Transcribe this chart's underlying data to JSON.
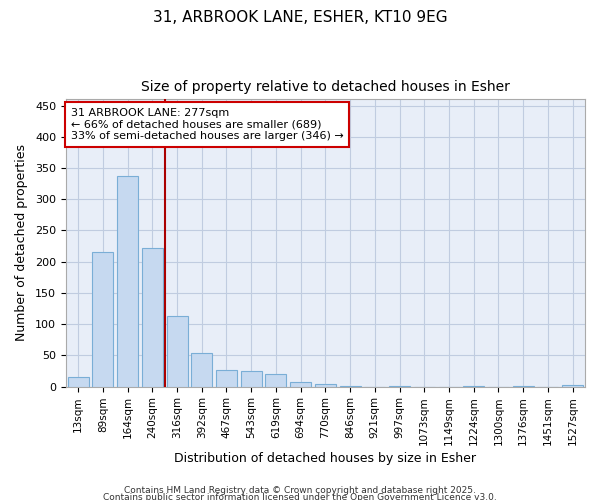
{
  "title1": "31, ARBROOK LANE, ESHER, KT10 9EG",
  "title2": "Size of property relative to detached houses in Esher",
  "xlabel": "Distribution of detached houses by size in Esher",
  "ylabel": "Number of detached properties",
  "categories": [
    "13sqm",
    "89sqm",
    "164sqm",
    "240sqm",
    "316sqm",
    "392sqm",
    "467sqm",
    "543sqm",
    "619sqm",
    "694sqm",
    "770sqm",
    "846sqm",
    "921sqm",
    "997sqm",
    "1073sqm",
    "1149sqm",
    "1224sqm",
    "1300sqm",
    "1376sqm",
    "1451sqm",
    "1527sqm"
  ],
  "values": [
    16,
    216,
    338,
    222,
    113,
    54,
    27,
    25,
    20,
    7,
    4,
    1,
    0,
    1,
    0,
    0,
    1,
    0,
    1,
    0,
    2
  ],
  "bar_color": "#c6d9f0",
  "bar_edge_color": "#7aaed6",
  "vline_color": "#aa0000",
  "vline_pos": 3.5,
  "ylim": [
    0,
    460
  ],
  "yticks": [
    0,
    50,
    100,
    150,
    200,
    250,
    300,
    350,
    400,
    450
  ],
  "annotation_title": "31 ARBROOK LANE: 277sqm",
  "annotation_line1": "← 66% of detached houses are smaller (689)",
  "annotation_line2": "33% of semi-detached houses are larger (346) →",
  "annotation_box_facecolor": "#ffffff",
  "annotation_box_edgecolor": "#cc0000",
  "bg_color": "#ffffff",
  "plot_bg_color": "#e8eef8",
  "grid_color": "#c0cce0",
  "footer1": "Contains HM Land Registry data © Crown copyright and database right 2025.",
  "footer2": "Contains public sector information licensed under the Open Government Licence v3.0.",
  "bar_width": 0.85,
  "title1_fontsize": 11,
  "title2_fontsize": 10
}
